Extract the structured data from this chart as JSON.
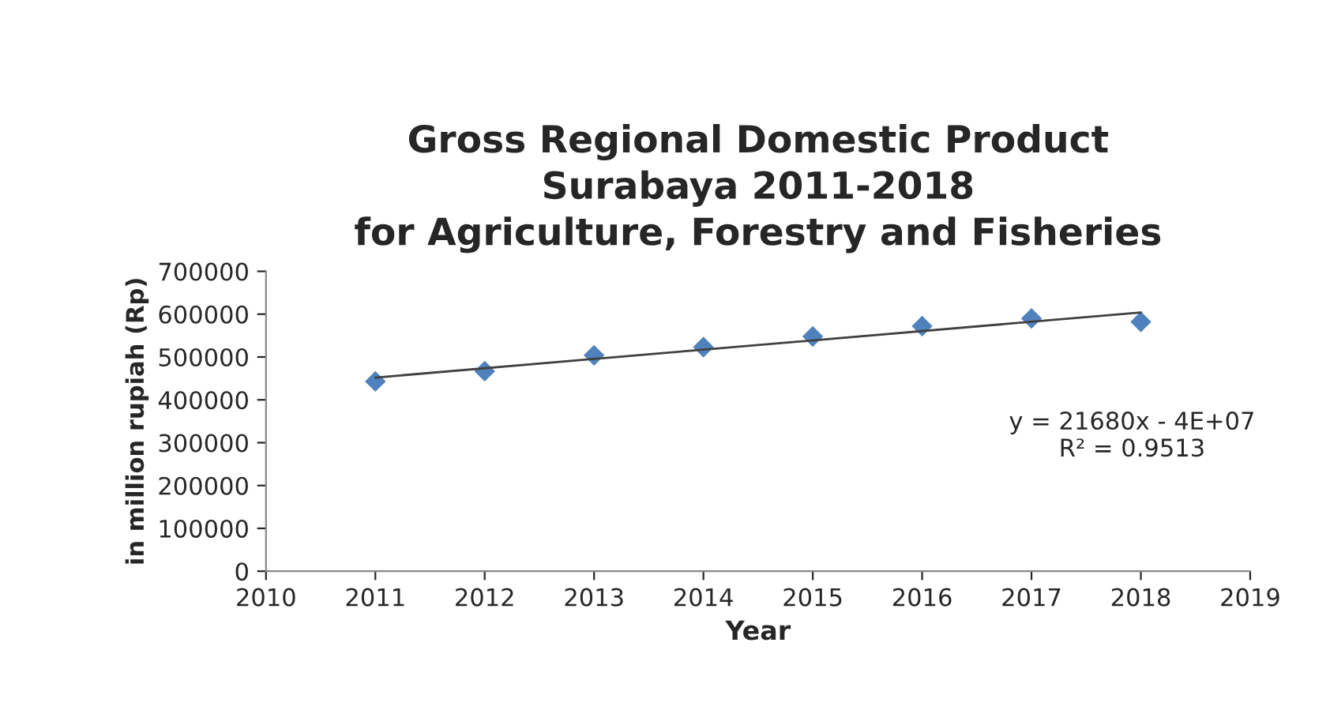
{
  "chart_data": {
    "type": "scatter",
    "title": "Gross Regional Domestic Product\nSurabaya 2011-2018\nfor Agriculture, Forestry and Fisheries",
    "xlabel": "Year",
    "ylabel": "in million rupiah (Rp)",
    "x": [
      2011,
      2012,
      2013,
      2014,
      2015,
      2016,
      2017,
      2018
    ],
    "series": [
      {
        "color": "#4f81bd",
        "marker": "diamond",
        "values": [
          443000,
          467000,
          504000,
          523000,
          548000,
          572000,
          590000,
          582000
        ]
      },
      {
        "type": "line",
        "color": "#404040",
        "marker": "none",
        "line_style": "solid",
        "x": [
          2011,
          2018
        ],
        "values": [
          452000,
          604000
        ]
      }
    ],
    "annotations": [
      "y = 21680x - 4E+07\nR² = 0.9513"
    ],
    "xlim": [
      2010,
      2019
    ],
    "xticks": [
      2010,
      2011,
      2012,
      2013,
      2014,
      2015,
      2016,
      2017,
      2018,
      2019
    ],
    "ylim": [
      0,
      700000
    ],
    "yticks": [
      0,
      100000,
      200000,
      300000,
      400000,
      500000,
      600000,
      700000
    ],
    "grid": false,
    "legend": false
  }
}
